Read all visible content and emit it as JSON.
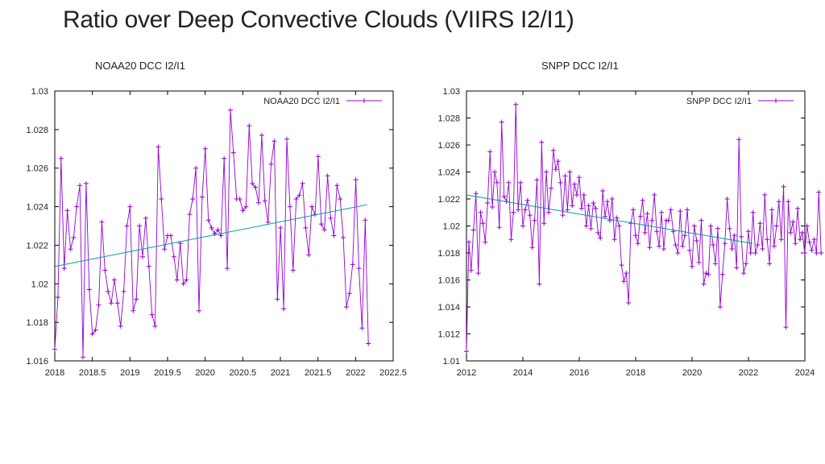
{
  "slide": {
    "title": "Ratio over Deep Convective Clouds (VIIRS I2/I1)",
    "left_subtitle": "NOAA20 DCC I2/I1",
    "right_subtitle": "SNPP DCC I2/I1"
  },
  "colors": {
    "series": "#9400d3",
    "trend": "#009e9e",
    "frame": "#000000"
  },
  "chart_data": [
    {
      "type": "line",
      "title": "NOAA20 DCC I2/I1",
      "legend": {
        "label": "NOAA20 DCC I2/I1",
        "placement": "top-right"
      },
      "xlim": [
        2018,
        2022.5
      ],
      "ylim": [
        1.016,
        1.03
      ],
      "xticks": [
        2018,
        2018.5,
        2019,
        2019.5,
        2020,
        2020.5,
        2021,
        2021.5,
        2022,
        2022.5
      ],
      "xtick_labels": [
        "2018",
        "2018.5",
        "2019",
        "2019.5",
        "2020",
        "2020.5",
        "2021",
        "2021.5",
        "2022",
        "2022.5"
      ],
      "yticks": [
        1.016,
        1.018,
        1.02,
        1.022,
        1.024,
        1.026,
        1.028,
        1.03
      ],
      "ytick_labels": [
        "1.016",
        "1.018",
        "1.02",
        "1.022",
        "1.024",
        "1.026",
        "1.028",
        "1.03"
      ],
      "series": [
        {
          "name": "NOAA20 DCC I2/I1",
          "x0": 2018.0,
          "dx": 0.0417,
          "values": [
            1.0166,
            1.0193,
            1.0265,
            1.0208,
            1.0238,
            1.0218,
            1.0224,
            1.024,
            1.0251,
            1.0162,
            1.0252,
            1.0197,
            1.0174,
            1.0176,
            1.0189,
            1.0232,
            1.0207,
            1.0196,
            1.019,
            1.0202,
            1.019,
            1.0178,
            1.0196,
            1.023,
            1.024,
            1.0186,
            1.0192,
            1.023,
            1.0214,
            1.0234,
            1.0209,
            1.0184,
            1.0178,
            1.0271,
            1.0244,
            1.0218,
            1.0225,
            1.0225,
            1.0214,
            1.0202,
            1.0221,
            1.02,
            1.0202,
            1.0236,
            1.0244,
            1.026,
            1.0186,
            1.0245,
            1.027,
            1.0233,
            1.0229,
            1.0226,
            1.0228,
            1.0225,
            1.0265,
            1.0208,
            1.029,
            1.0268,
            1.0244,
            1.0244,
            1.0238,
            1.024,
            1.0282,
            1.0252,
            1.025,
            1.0242,
            1.0277,
            1.0243,
            1.0232,
            1.0262,
            1.0274,
            1.0192,
            1.0229,
            1.0187,
            1.0275,
            1.024,
            1.0207,
            1.0244,
            1.0246,
            1.0252,
            1.0229,
            1.0215,
            1.024,
            1.0236,
            1.0266,
            1.0231,
            1.0228,
            1.0256,
            1.0234,
            1.0225,
            1.0251,
            1.0244,
            1.0224,
            1.0188,
            1.0195,
            1.021,
            1.0254,
            1.0208,
            1.0177,
            1.0233,
            1.0169
          ]
        }
      ],
      "trend": {
        "x": [
          2018.0,
          2022.15
        ],
        "y": [
          1.0209,
          1.0241
        ]
      }
    },
    {
      "type": "line",
      "title": "SNPP DCC I2/I1",
      "legend": {
        "label": "SNPP DCC I2/I1",
        "placement": "top-right"
      },
      "xlim": [
        2012,
        2024
      ],
      "ylim": [
        1.01,
        1.03
      ],
      "xticks": [
        2012,
        2014,
        2016,
        2018,
        2020,
        2022,
        2024
      ],
      "xtick_labels": [
        "2012",
        "2014",
        "2016",
        "2018",
        "2020",
        "2022",
        "2024"
      ],
      "yticks": [
        1.01,
        1.012,
        1.014,
        1.016,
        1.018,
        1.02,
        1.022,
        1.024,
        1.026,
        1.028,
        1.03
      ],
      "ytick_labels": [
        "1.01",
        "1.012",
        "1.014",
        "1.016",
        "1.018",
        "1.02",
        "1.022",
        "1.024",
        "1.026",
        "1.028",
        "1.03"
      ],
      "series": [
        {
          "name": "SNPP DCC I2/I1",
          "x0": 2012.0,
          "dx": 0.0833,
          "values": [
            1.0107,
            1.0188,
            1.0167,
            1.0197,
            1.0224,
            1.0165,
            1.021,
            1.0202,
            1.0188,
            1.0217,
            1.0255,
            1.0214,
            1.024,
            1.0232,
            1.0199,
            1.0277,
            1.0222,
            1.0218,
            1.0232,
            1.019,
            1.021,
            1.029,
            1.0212,
            1.0232,
            1.02,
            1.0212,
            1.0219,
            1.0208,
            1.0184,
            1.0204,
            1.0234,
            1.0157,
            1.0262,
            1.0202,
            1.024,
            1.021,
            1.0228,
            1.0256,
            1.0242,
            1.0248,
            1.0232,
            1.0208,
            1.0237,
            1.0212,
            1.024,
            1.0215,
            1.0231,
            1.0223,
            1.0236,
            1.0213,
            1.0223,
            1.02,
            1.0215,
            1.0198,
            1.0217,
            1.0213,
            1.0195,
            1.0191,
            1.0226,
            1.0207,
            1.0218,
            1.0204,
            1.022,
            1.019,
            1.0206,
            1.02,
            1.0171,
            1.0159,
            1.0165,
            1.0143,
            1.0202,
            1.0212,
            1.0193,
            1.0187,
            1.0207,
            1.0219,
            1.0195,
            1.0209,
            1.0184,
            1.0204,
            1.0223,
            1.0196,
            1.0185,
            1.021,
            1.0183,
            1.0204,
            1.0204,
            1.0212,
            1.0196,
            1.0186,
            1.018,
            1.0211,
            1.0185,
            1.0193,
            1.0212,
            1.0182,
            1.017,
            1.02,
            1.0189,
            1.0173,
            1.0204,
            1.0157,
            1.0165,
            1.0164,
            1.02,
            1.0186,
            1.0172,
            1.0198,
            1.014,
            1.0164,
            1.0187,
            1.022,
            1.0198,
            1.0183,
            1.0193,
            1.0169,
            1.0264,
            1.0192,
            1.0165,
            1.0172,
            1.0196,
            1.018,
            1.021,
            1.018,
            1.0186,
            1.0202,
            1.0183,
            1.0223,
            1.019,
            1.0172,
            1.0212,
            1.0185,
            1.02,
            1.0218,
            1.019,
            1.0229,
            1.0125,
            1.0218,
            1.0195,
            1.0203,
            1.0187,
            1.0213,
            1.019,
            1.0195,
            1.018,
            1.02,
            1.0188,
            1.0182,
            1.019,
            1.018,
            1.0225,
            1.018
          ]
        }
      ],
      "trend": {
        "x": [
          2012.0,
          2022.15
        ],
        "y": [
          1.0223,
          1.0187
        ]
      }
    }
  ]
}
